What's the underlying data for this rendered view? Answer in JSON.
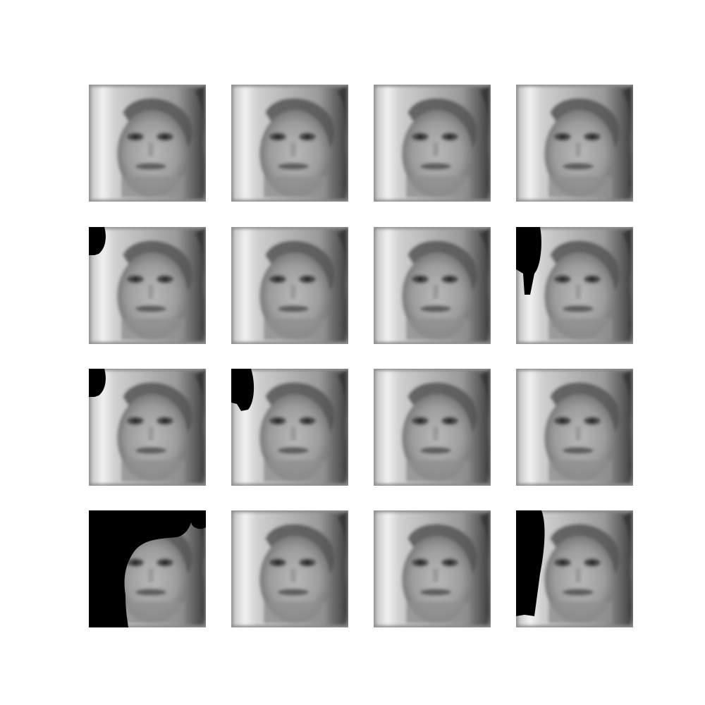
{
  "figure": {
    "rows": 4,
    "cols": 4,
    "tiles": [
      {
        "variant": "face",
        "mask": "none"
      },
      {
        "variant": "face",
        "mask": "none"
      },
      {
        "variant": "face",
        "mask": "none"
      },
      {
        "variant": "face",
        "mask": "none"
      },
      {
        "variant": "face",
        "mask": "blot-small"
      },
      {
        "variant": "face",
        "mask": "none"
      },
      {
        "variant": "face",
        "mask": "none"
      },
      {
        "variant": "face",
        "mask": "blot-tall"
      },
      {
        "variant": "face",
        "mask": "blot-small"
      },
      {
        "variant": "face",
        "mask": "blot-medium"
      },
      {
        "variant": "face",
        "mask": "none"
      },
      {
        "variant": "face",
        "mask": "none"
      },
      {
        "variant": "face",
        "mask": "dark-frame"
      },
      {
        "variant": "face",
        "mask": "none"
      },
      {
        "variant": "face",
        "mask": "none"
      },
      {
        "variant": "face",
        "mask": "blot-long"
      }
    ]
  }
}
